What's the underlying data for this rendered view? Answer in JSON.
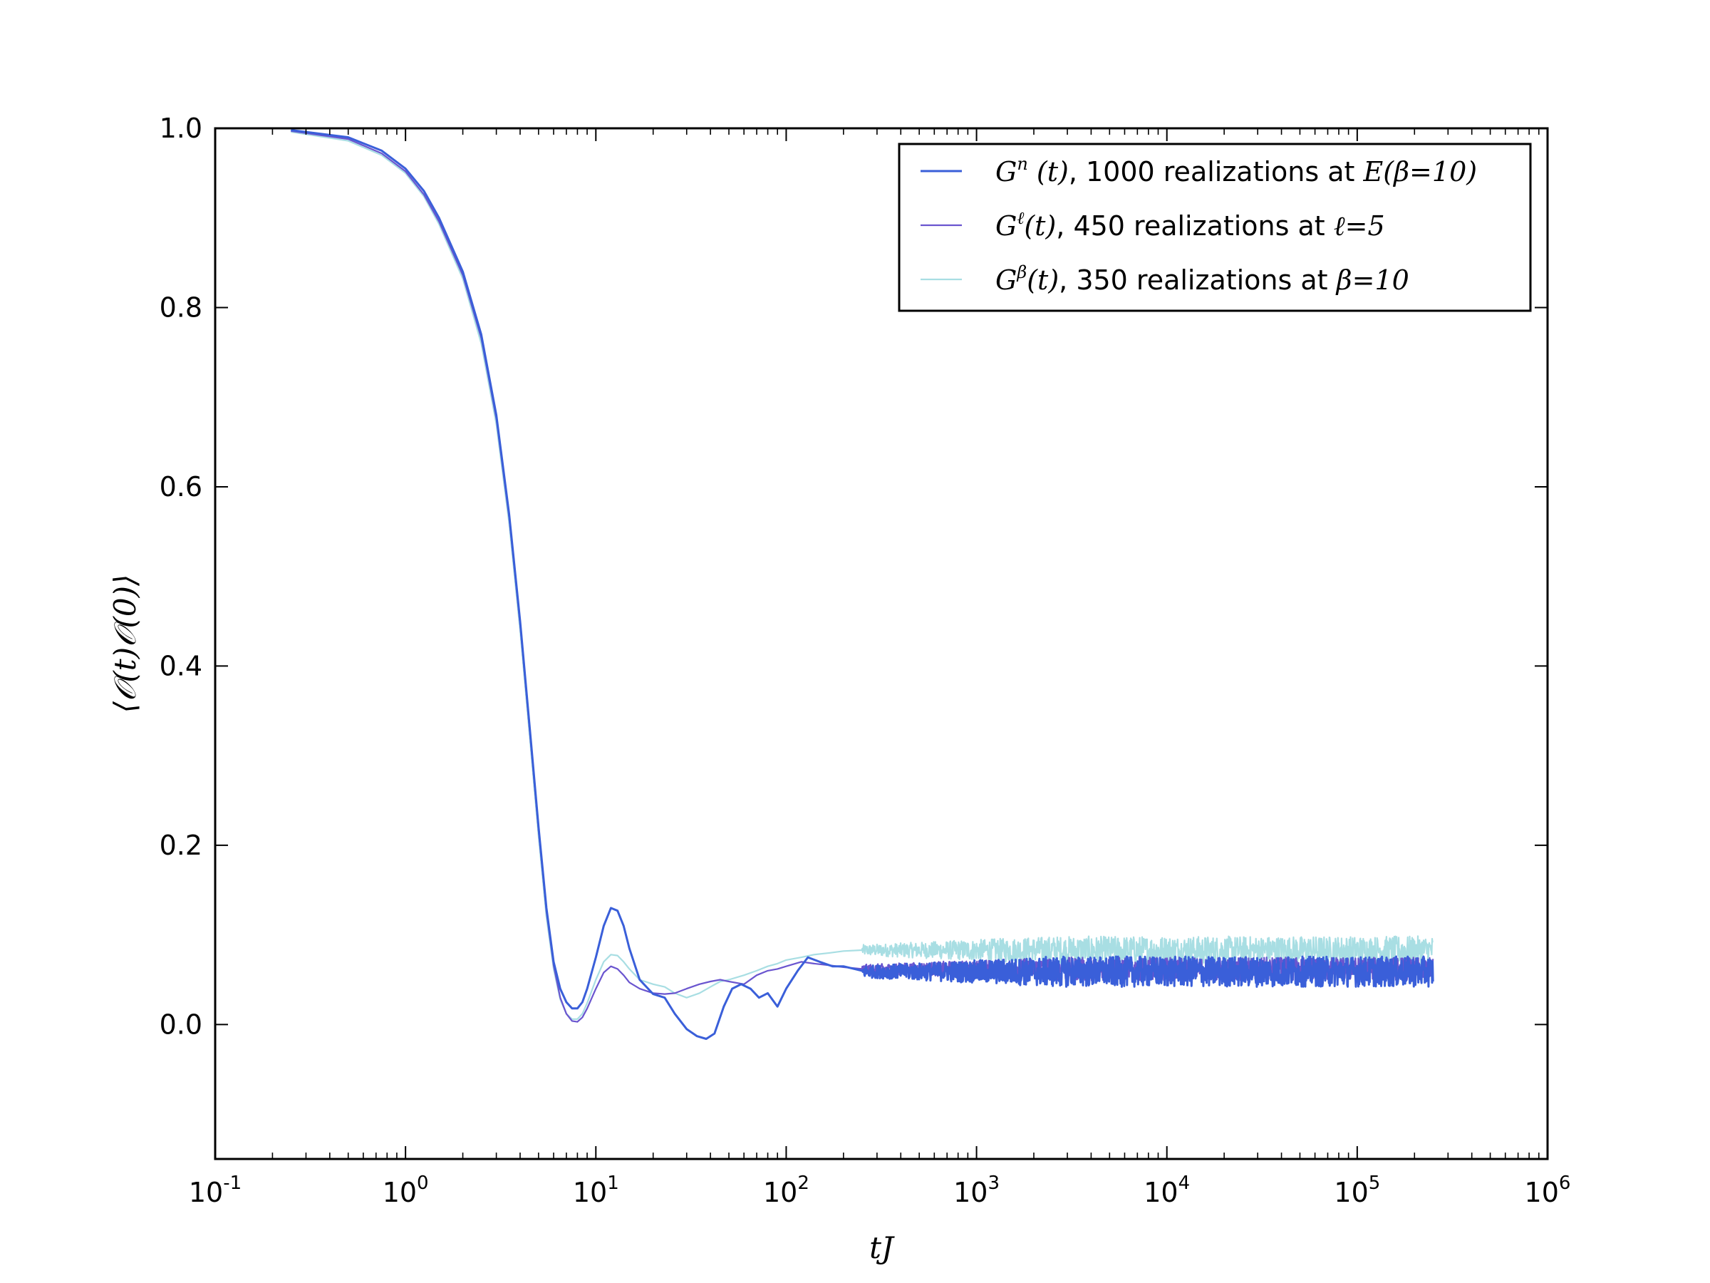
{
  "chart_data": {
    "type": "line",
    "xscale": "log",
    "xlim": [
      0.1,
      1000000
    ],
    "ylim": [
      -0.15,
      1.0
    ],
    "xlabel": "tJ",
    "ylabel": "⟨𝒪(t)𝒪(0)⟩",
    "legend_position": "top-right",
    "grid": false,
    "x_ticks": [
      {
        "base": "10",
        "exp": "-1",
        "value": 0.1
      },
      {
        "base": "10",
        "exp": "0",
        "value": 1
      },
      {
        "base": "10",
        "exp": "1",
        "value": 10
      },
      {
        "base": "10",
        "exp": "2",
        "value": 100
      },
      {
        "base": "10",
        "exp": "3",
        "value": 1000
      },
      {
        "base": "10",
        "exp": "4",
        "value": 10000
      },
      {
        "base": "10",
        "exp": "5",
        "value": 100000
      },
      {
        "base": "10",
        "exp": "6",
        "value": 1000000
      }
    ],
    "y_ticks": [
      "0.0",
      "0.2",
      "0.4",
      "0.6",
      "0.8",
      "1.0"
    ],
    "series": [
      {
        "name": "G^n (t), 1000 realizations at E(β=10)",
        "legend": {
          "sym": "G",
          "sup": "n",
          "arg": " (t)",
          "text": ", 1000 realizations at ",
          "math": "E(β=10)"
        },
        "color": "#3a5fd9",
        "noise_level": 0.059,
        "noise_amp": 0.013,
        "x": [
          0.25,
          0.5,
          0.75,
          1.0,
          1.25,
          1.5,
          2.0,
          2.5,
          3.0,
          3.5,
          4.0,
          4.5,
          5.0,
          5.5,
          6.0,
          6.5,
          7.0,
          7.5,
          8.0,
          8.5,
          9.0,
          10.0,
          11.0,
          12.0,
          13.0,
          14.0,
          15.0,
          17.0,
          20.0,
          23.0,
          26.0,
          30.0,
          34.0,
          38.0,
          42.0,
          47.0,
          52.0,
          58.0,
          65.0,
          72.0,
          80.0,
          90.0,
          100.0,
          115.0,
          130.0,
          150.0,
          175.0,
          200.0,
          250.0
        ],
        "y": [
          0.998,
          0.99,
          0.975,
          0.955,
          0.93,
          0.9,
          0.84,
          0.77,
          0.68,
          0.57,
          0.45,
          0.33,
          0.22,
          0.13,
          0.07,
          0.04,
          0.025,
          0.018,
          0.018,
          0.025,
          0.04,
          0.075,
          0.11,
          0.13,
          0.127,
          0.11,
          0.085,
          0.05,
          0.034,
          0.03,
          0.012,
          -0.005,
          -0.013,
          -0.016,
          -0.01,
          0.02,
          0.04,
          0.045,
          0.04,
          0.03,
          0.035,
          0.02,
          0.04,
          0.06,
          0.075,
          0.07,
          0.065,
          0.065,
          0.06
        ]
      },
      {
        "name": "G^ℓ(t), 450 realizations at ℓ=5",
        "legend": {
          "sym": "G",
          "sup": "ℓ",
          "arg": "(t)",
          "text": ", 450 realizations at ",
          "math": "ℓ=5"
        },
        "color": "#6a55cf",
        "noise_level": 0.062,
        "noise_amp": 0.01,
        "x": [
          0.25,
          0.5,
          0.75,
          1.0,
          1.25,
          1.5,
          2.0,
          2.5,
          3.0,
          3.5,
          4.0,
          4.5,
          5.0,
          5.5,
          6.0,
          6.5,
          7.0,
          7.5,
          8.0,
          8.5,
          9.0,
          10.0,
          11.0,
          12.0,
          13.0,
          14.0,
          15.0,
          17.0,
          20.0,
          23.0,
          26.0,
          30.0,
          35.0,
          40.0,
          45.0,
          50.0,
          60.0,
          70.0,
          80.0,
          90.0,
          100.0,
          120.0,
          140.0,
          170.0,
          200.0,
          250.0
        ],
        "y": [
          0.997,
          0.988,
          0.972,
          0.952,
          0.926,
          0.896,
          0.836,
          0.766,
          0.676,
          0.566,
          0.446,
          0.326,
          0.216,
          0.126,
          0.066,
          0.03,
          0.012,
          0.004,
          0.003,
          0.008,
          0.018,
          0.04,
          0.058,
          0.065,
          0.062,
          0.055,
          0.047,
          0.04,
          0.035,
          0.034,
          0.035,
          0.04,
          0.045,
          0.048,
          0.05,
          0.048,
          0.045,
          0.055,
          0.06,
          0.062,
          0.065,
          0.07,
          0.068,
          0.066,
          0.064,
          0.062
        ]
      },
      {
        "name": "G^β(t), 350 realizations at β=10",
        "legend": {
          "sym": "G",
          "sup": "β",
          "arg": "(t)",
          "text": ", 350 realizations at ",
          "math": "β=10"
        },
        "color": "#a8dee3",
        "noise_level": 0.083,
        "noise_amp": 0.012,
        "x": [
          0.25,
          0.5,
          0.75,
          1.0,
          1.25,
          1.5,
          2.0,
          2.5,
          3.0,
          3.5,
          4.0,
          4.5,
          5.0,
          5.5,
          6.0,
          6.5,
          7.0,
          7.5,
          8.0,
          8.5,
          9.0,
          10.0,
          11.0,
          12.0,
          13.0,
          14.0,
          15.0,
          17.0,
          20.0,
          23.0,
          26.0,
          30.0,
          35.0,
          40.0,
          45.0,
          50.0,
          60.0,
          70.0,
          80.0,
          90.0,
          100.0,
          120.0,
          140.0,
          170.0,
          200.0,
          250.0
        ],
        "y": [
          0.996,
          0.986,
          0.97,
          0.95,
          0.924,
          0.893,
          0.832,
          0.76,
          0.67,
          0.56,
          0.44,
          0.32,
          0.21,
          0.12,
          0.062,
          0.028,
          0.012,
          0.006,
          0.006,
          0.012,
          0.024,
          0.05,
          0.07,
          0.078,
          0.077,
          0.07,
          0.062,
          0.05,
          0.045,
          0.042,
          0.035,
          0.03,
          0.035,
          0.042,
          0.048,
          0.05,
          0.055,
          0.06,
          0.065,
          0.068,
          0.072,
          0.075,
          0.078,
          0.08,
          0.082,
          0.083
        ]
      }
    ]
  }
}
